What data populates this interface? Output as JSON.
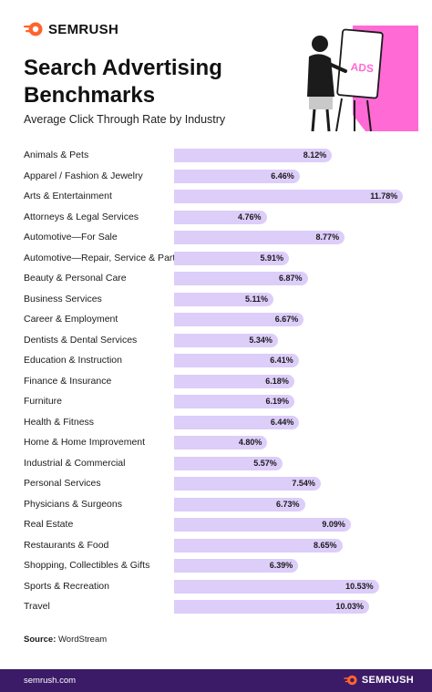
{
  "brand": {
    "name": "SEMRUSH",
    "accent": "#ff642d"
  },
  "header": {
    "title": "Search Advertising Benchmarks",
    "subtitle": "Average Click Through Rate by Industry"
  },
  "illustration": {
    "sign_text": "ADS",
    "accent": "#ff6ad5"
  },
  "chart_data": {
    "type": "bar",
    "orientation": "horizontal",
    "title": "Average Click Through Rate by Industry",
    "unit": "%",
    "bar_color": "#dccdf9",
    "categories": [
      "Animals & Pets",
      "Apparel / Fashion & Jewelry",
      "Arts & Entertainment",
      "Attorneys & Legal Services",
      "Automotive—For Sale",
      "Automotive—Repair, Service & Parts",
      "Beauty & Personal Care",
      "Business Services",
      "Career & Employment",
      "Dentists & Dental Services",
      "Education & Instruction",
      "Finance & Insurance",
      "Furniture",
      "Health & Fitness",
      "Home & Home Improvement",
      "Industrial & Commercial",
      "Personal Services",
      "Physicians & Surgeons",
      "Real Estate",
      "Restaurants & Food",
      "Shopping, Collectibles & Gifts",
      "Sports & Recreation",
      "Travel"
    ],
    "values": [
      8.12,
      6.46,
      11.78,
      4.76,
      8.77,
      5.91,
      6.87,
      5.11,
      6.67,
      5.34,
      6.41,
      6.18,
      6.19,
      6.44,
      4.8,
      5.57,
      7.54,
      6.73,
      9.09,
      8.65,
      6.39,
      10.53,
      10.03
    ],
    "value_labels": [
      "8.12%",
      "6.46%",
      "11.78%",
      "4.76%",
      "8.77%",
      "5.91%",
      "6.87%",
      "5.11%",
      "6.67%",
      "5.34%",
      "6.41%",
      "6.18%",
      "6.19%",
      "6.44%",
      "4.80%",
      "5.57%",
      "7.54%",
      "6.73%",
      "9.09%",
      "8.65%",
      "6.39%",
      "10.53%",
      "10.03%"
    ],
    "xlim": [
      0,
      12
    ],
    "grid": false,
    "legend": "none"
  },
  "source": {
    "label": "Source:",
    "text": "WordStream"
  },
  "footer": {
    "url": "semrush.com",
    "brand": "SEMRUSH",
    "background": "#3b1a67"
  }
}
